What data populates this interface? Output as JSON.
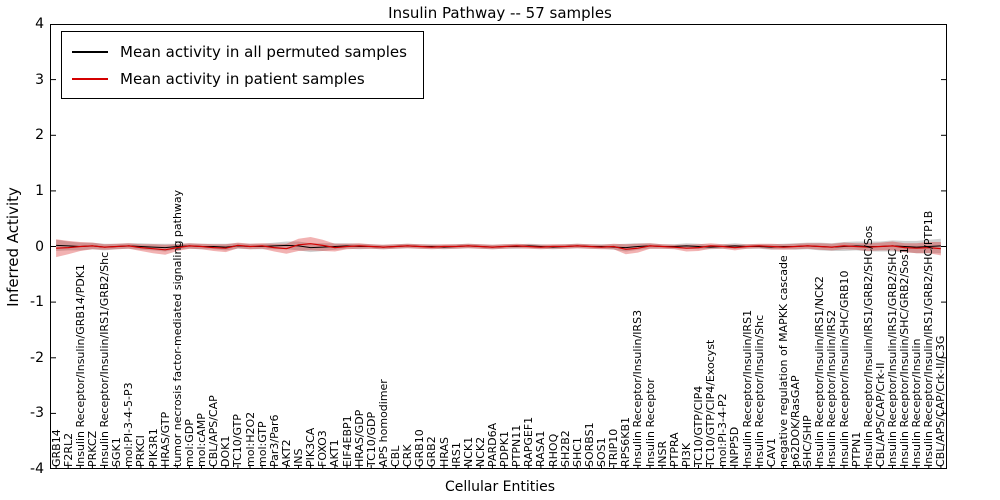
{
  "figure": {
    "background": "#ffffff"
  },
  "axes": {
    "y_tick_labels": [
      "4",
      "3",
      "2",
      "1",
      "0",
      "-1",
      "-2",
      "-3",
      "-4"
    ],
    "y_tick_values": [
      4,
      3,
      2,
      1,
      0,
      -1,
      -2,
      -3,
      -4
    ]
  },
  "chart_data": {
    "type": "line",
    "title": "Insulin Pathway -- 57 samples",
    "xlabel": "Cellular Entities",
    "ylabel": "Inferred Activity",
    "ylim": [
      -4,
      4
    ],
    "grid": false,
    "legend_position": "upper left",
    "categories": [
      "GRB14",
      "F2RL2",
      "Insulin Receptor/Insulin/GRB14/PDK1",
      "PRKCZ",
      "Insulin Receptor/Insulin/IRS1/GRB2/Shc",
      "SGK1",
      "mol:PI-3-4-5-P3",
      "PRKCI",
      "PIK3R1",
      "HRAS/GTP",
      "tumor necrosis factor-mediated signaling pathway",
      "mol:GDP",
      "mol:cAMP",
      "CBL/APS/CAP",
      "DOK1",
      "TC10/GTP",
      "mol:H2O2",
      "mol:GTP",
      "Par3/Par6",
      "AKT2",
      "INS",
      "PIK3CA",
      "FOXO3",
      "AKT1",
      "EIF4EBP1",
      "HRAS/GDP",
      "TC10/GDP",
      "APS homodimer",
      "CBL",
      "CRK",
      "GRB10",
      "GRB2",
      "HRAS",
      "IRS1",
      "NCK1",
      "NCK2",
      "PARD6A",
      "PDPK1",
      "PTPN11",
      "RAPGEF1",
      "RASA1",
      "RHOQ",
      "SH2B2",
      "SHC1",
      "SORBS1",
      "SOS1",
      "TRIP10",
      "RPS6KB1",
      "Insulin Receptor/Insulin/IRS3",
      "Insulin Receptor",
      "INSR",
      "PTPRA",
      "PI3K",
      "TC10/GTP/CIP4",
      "TC10/GTP/CIP4/Exocyst",
      "mol:PI-3-4-P2",
      "INPP5D",
      "Insulin Receptor/Insulin/IRS1",
      "Insulin Receptor/Insulin/Shc",
      "CAV1",
      "negative regulation of MAPKK cascade",
      "p62DOK/RasGAP",
      "SHC/SHIP",
      "Insulin Receptor/Insulin/IRS1/NCK2",
      "Insulin Receptor/Insulin/IRS2",
      "Insulin Receptor/Insulin/SHC/GRB10",
      "PTPN1",
      "Insulin Receptor/Insulin/IRS1/GRB2/SHC/Sos",
      "CBL/APS/CAP/Crk-II",
      "Insulin Receptor/Insulin/IRS1/GRB2/SHC",
      "Insulin Receptor/Insulin/SHC/GRB2/Sos1",
      "Insulin Receptor/Insulin",
      "Insulin Receptor/Insulin/IRS1/GRB2/SHC/PTP1B",
      "CBL/APS/CAP/Crk-II/C3G"
    ],
    "series": [
      {
        "name": "Mean activity in all permuted samples",
        "color": "#000000",
        "band_opacity": 0.18,
        "values": [
          0.02,
          0.01,
          0.0,
          0.01,
          -0.01,
          0.0,
          0.01,
          0.0,
          -0.01,
          -0.02,
          0.0,
          0.01,
          0.0,
          0.0,
          -0.01,
          0.01,
          0.0,
          0.0,
          0.01,
          0.02,
          0.01,
          -0.02,
          -0.01,
          0.0,
          0.01,
          0.0,
          0.0,
          -0.01,
          0.0,
          0.01,
          0.0,
          0.0,
          -0.01,
          0.0,
          0.01,
          0.0,
          -0.01,
          0.0,
          0.0,
          0.01,
          0.0,
          -0.01,
          0.0,
          0.01,
          0.0,
          0.0,
          -0.01,
          -0.02,
          0.0,
          0.01,
          0.0,
          0.0,
          0.01,
          0.0,
          -0.01,
          0.0,
          0.01,
          0.0,
          0.0,
          -0.01,
          0.0,
          0.0,
          0.01,
          0.0,
          -0.01,
          0.0,
          0.01,
          0.0,
          0.0,
          0.01,
          0.0,
          -0.01,
          0.0,
          0.01
        ],
        "band": [
          0.1,
          0.08,
          0.07,
          0.06,
          0.06,
          0.05,
          0.05,
          0.06,
          0.06,
          0.07,
          0.05,
          0.05,
          0.05,
          0.05,
          0.06,
          0.05,
          0.05,
          0.05,
          0.06,
          0.07,
          0.08,
          0.08,
          0.07,
          0.06,
          0.05,
          0.05,
          0.04,
          0.04,
          0.04,
          0.04,
          0.04,
          0.04,
          0.04,
          0.04,
          0.04,
          0.04,
          0.04,
          0.04,
          0.04,
          0.04,
          0.04,
          0.04,
          0.04,
          0.04,
          0.04,
          0.04,
          0.05,
          0.07,
          0.06,
          0.05,
          0.04,
          0.04,
          0.05,
          0.05,
          0.04,
          0.04,
          0.05,
          0.04,
          0.04,
          0.05,
          0.05,
          0.06,
          0.06,
          0.07,
          0.07,
          0.08,
          0.08,
          0.09,
          0.09,
          0.1,
          0.1,
          0.11,
          0.12,
          0.13
        ]
      },
      {
        "name": "Mean activity in patient samples",
        "color": "#d40000",
        "band_opacity": 0.3,
        "values": [
          -0.03,
          -0.02,
          0.0,
          0.01,
          -0.01,
          0.0,
          0.01,
          -0.02,
          -0.04,
          -0.06,
          -0.02,
          0.01,
          0.0,
          -0.02,
          -0.03,
          0.02,
          0.0,
          0.01,
          -0.02,
          -0.04,
          0.03,
          0.05,
          0.02,
          -0.02,
          0.0,
          0.01,
          0.0,
          -0.01,
          0.0,
          0.01,
          0.0,
          -0.01,
          0.0,
          0.0,
          0.01,
          0.0,
          -0.01,
          0.0,
          0.01,
          0.0,
          -0.01,
          0.0,
          0.0,
          0.01,
          0.0,
          -0.01,
          0.0,
          -0.05,
          -0.03,
          0.01,
          0.0,
          -0.01,
          -0.03,
          -0.02,
          0.01,
          0.0,
          -0.02,
          0.0,
          0.01,
          0.0,
          -0.01,
          0.0,
          0.01,
          0.0,
          -0.01,
          0.01,
          0.0,
          -0.01,
          0.0,
          0.01,
          -0.02,
          -0.03,
          -0.02,
          -0.04
        ],
        "band": [
          0.16,
          0.12,
          0.08,
          0.06,
          0.05,
          0.05,
          0.05,
          0.06,
          0.08,
          0.09,
          0.06,
          0.05,
          0.05,
          0.06,
          0.07,
          0.05,
          0.05,
          0.05,
          0.07,
          0.09,
          0.11,
          0.12,
          0.1,
          0.07,
          0.05,
          0.05,
          0.04,
          0.04,
          0.04,
          0.04,
          0.04,
          0.04,
          0.04,
          0.04,
          0.04,
          0.04,
          0.04,
          0.04,
          0.04,
          0.04,
          0.04,
          0.04,
          0.04,
          0.04,
          0.04,
          0.04,
          0.05,
          0.09,
          0.08,
          0.05,
          0.04,
          0.04,
          0.06,
          0.06,
          0.05,
          0.04,
          0.05,
          0.04,
          0.04,
          0.05,
          0.05,
          0.05,
          0.05,
          0.06,
          0.06,
          0.06,
          0.06,
          0.07,
          0.07,
          0.08,
          0.08,
          0.09,
          0.1,
          0.12
        ]
      }
    ]
  }
}
